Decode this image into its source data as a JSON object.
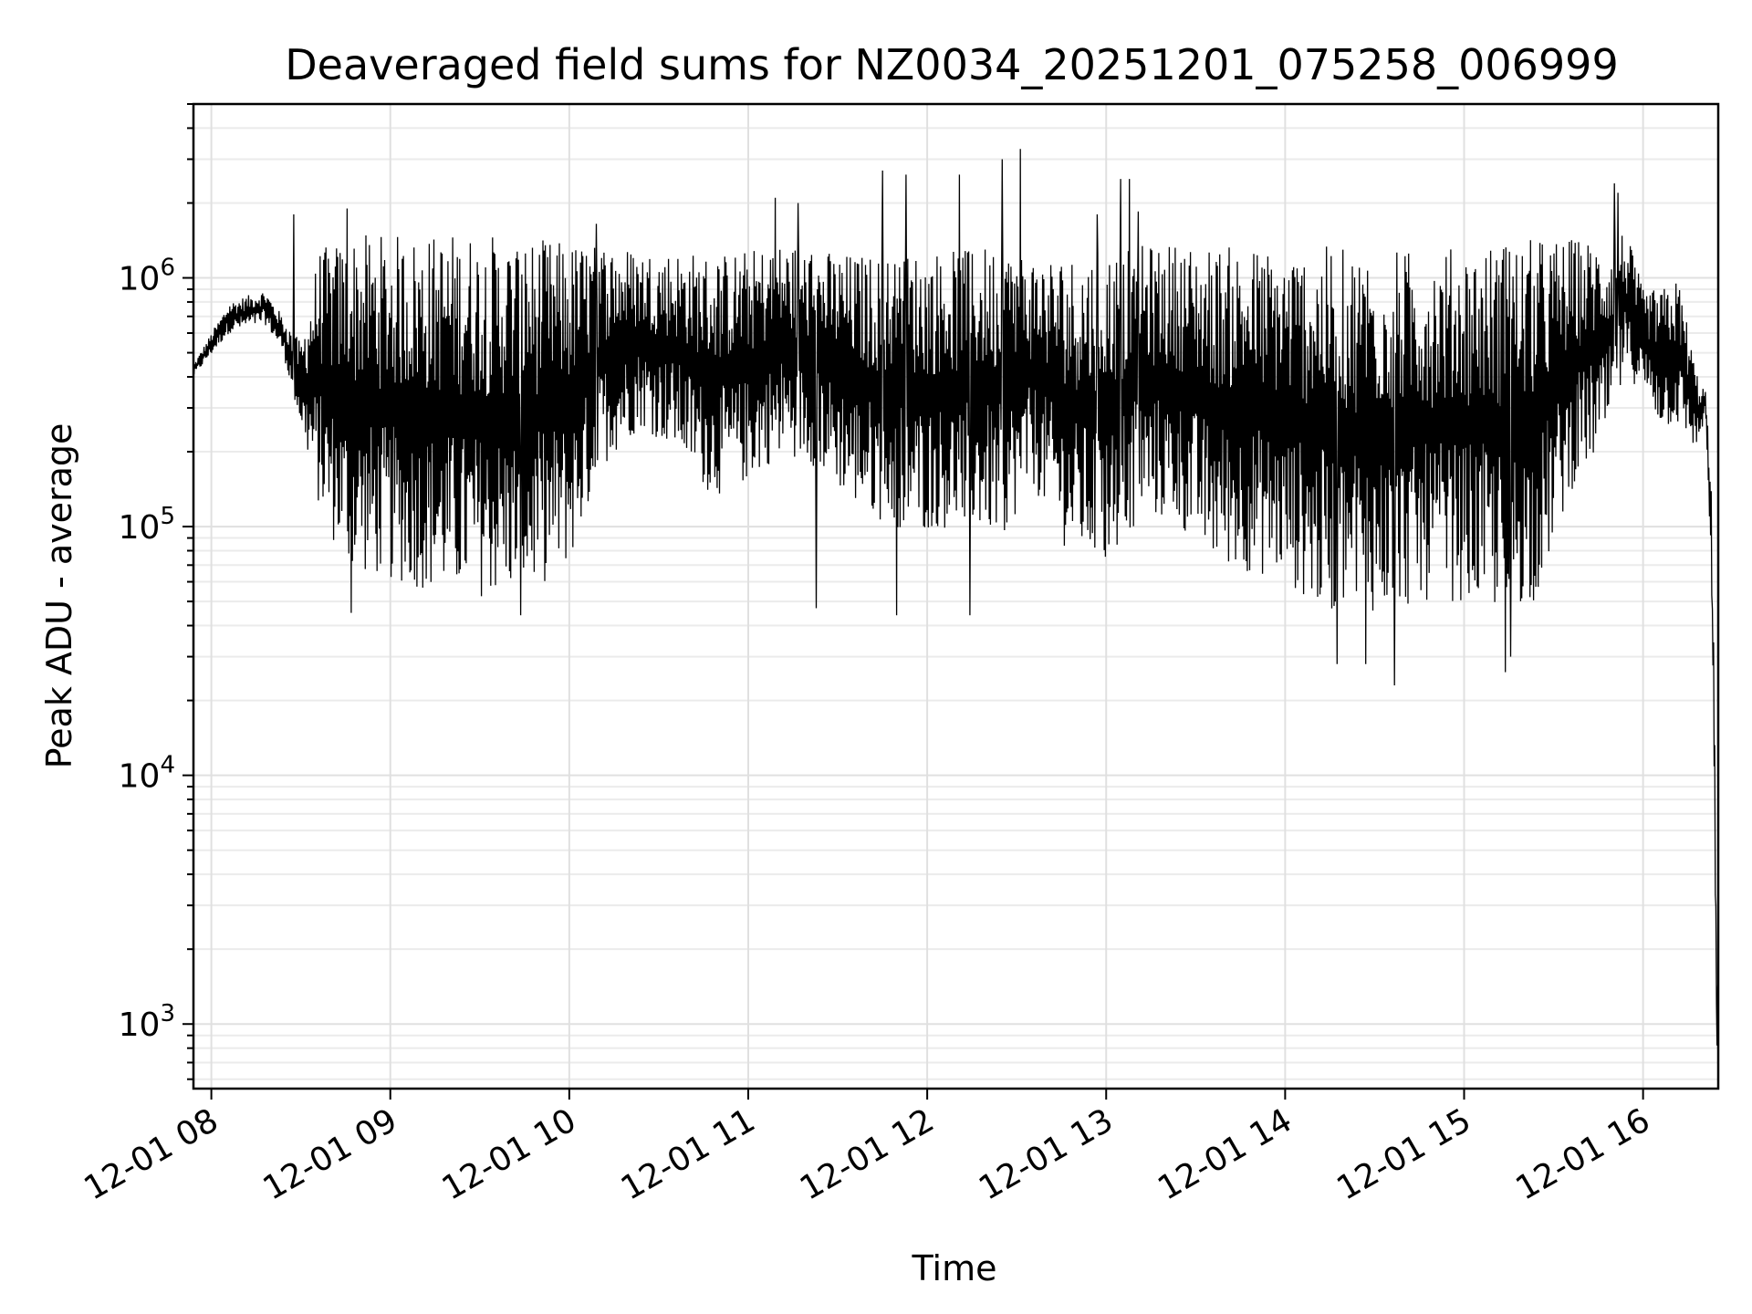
{
  "chart_data": {
    "type": "line",
    "title": "Deaveraged field sums for NZ0034_20251201_075258_006999",
    "xlabel": "Time",
    "ylabel": "Peak ADU - average",
    "yscale": "log",
    "ylim": [
      550,
      5000000
    ],
    "xlim_hours": [
      7.9,
      16.42
    ],
    "grid": true,
    "x_tick_hours": [
      8,
      9,
      10,
      11,
      12,
      13,
      14,
      15,
      16
    ],
    "x_tick_labels": [
      "12-01 08",
      "12-01 09",
      "12-01 10",
      "12-01 11",
      "12-01 12",
      "12-01 13",
      "12-01 14",
      "12-01 15",
      "12-01 16"
    ],
    "y_ticks": [
      {
        "value": 1000,
        "base": "10",
        "exp": "3"
      },
      {
        "value": 10000,
        "base": "10",
        "exp": "4"
      },
      {
        "value": 100000,
        "base": "10",
        "exp": "5"
      },
      {
        "value": 1000000,
        "base": "10",
        "exp": "6"
      }
    ],
    "series": [
      {
        "name": "Peak ADU - average",
        "color": "#000000",
        "envelope_hours": [
          7.9,
          8.1,
          8.3,
          8.4,
          8.5,
          8.6,
          8.7,
          8.8,
          9.0,
          9.2,
          9.4,
          9.6,
          9.8,
          10.0,
          10.2,
          10.4,
          10.6,
          10.8,
          11.0,
          11.2,
          11.4,
          11.6,
          11.8,
          12.0,
          12.2,
          12.4,
          12.6,
          12.8,
          13.0,
          13.2,
          13.4,
          13.6,
          13.8,
          14.0,
          14.2,
          14.4,
          14.6,
          14.8,
          15.0,
          15.2,
          15.4,
          15.6,
          15.8,
          15.9,
          16.0,
          16.1,
          16.2,
          16.3,
          16.35,
          16.38,
          16.4,
          16.41,
          16.42
        ],
        "envelope_high": [
          450000,
          800000,
          900000,
          700000,
          550000,
          1300000,
          1400000,
          1500000,
          1500000,
          1500000,
          1550000,
          1500000,
          1450000,
          1400000,
          1400000,
          1300000,
          1300000,
          1250000,
          1300000,
          1400000,
          1300000,
          1250000,
          1250000,
          1300000,
          1300000,
          1400000,
          1250000,
          1250000,
          1300000,
          1350000,
          1400000,
          1350000,
          1350000,
          1300000,
          1350000,
          1300000,
          1300000,
          1300000,
          1350000,
          1400000,
          1450000,
          1450000,
          1400000,
          1600000,
          900000,
          900000,
          1000000,
          420000,
          350000,
          150000,
          20000,
          2000,
          1500
        ],
        "envelope_low": [
          400000,
          600000,
          650000,
          500000,
          250000,
          120000,
          80000,
          65000,
          60000,
          55000,
          52000,
          52000,
          55000,
          70000,
          180000,
          250000,
          200000,
          130000,
          150000,
          200000,
          170000,
          120000,
          100000,
          95000,
          100000,
          90000,
          140000,
          75000,
          70000,
          110000,
          100000,
          70000,
          65000,
          60000,
          45000,
          45000,
          45000,
          50000,
          50000,
          45000,
          50000,
          140000,
          220000,
          400000,
          350000,
          250000,
          250000,
          200000,
          280000,
          60000,
          6000,
          900,
          1500
        ],
        "spikes": [
          {
            "t": 8.46,
            "v": 1800000
          },
          {
            "t": 8.76,
            "v": 1900000
          },
          {
            "t": 10.15,
            "v": 1650000
          },
          {
            "t": 11.15,
            "v": 2100000
          },
          {
            "t": 11.28,
            "v": 2000000
          },
          {
            "t": 11.75,
            "v": 2700000
          },
          {
            "t": 11.88,
            "v": 2600000
          },
          {
            "t": 12.18,
            "v": 2600000
          },
          {
            "t": 12.42,
            "v": 3000000
          },
          {
            "t": 12.52,
            "v": 3300000
          },
          {
            "t": 12.95,
            "v": 1800000
          },
          {
            "t": 13.08,
            "v": 2500000
          },
          {
            "t": 13.13,
            "v": 2500000
          },
          {
            "t": 13.18,
            "v": 1850000
          },
          {
            "t": 15.84,
            "v": 2400000
          },
          {
            "t": 15.86,
            "v": 2200000
          }
        ],
        "dips": [
          {
            "t": 8.78,
            "v": 45000
          },
          {
            "t": 9.73,
            "v": 44000
          },
          {
            "t": 11.38,
            "v": 47000
          },
          {
            "t": 11.83,
            "v": 44000
          },
          {
            "t": 12.24,
            "v": 44000
          },
          {
            "t": 14.29,
            "v": 28000
          },
          {
            "t": 14.45,
            "v": 28000
          },
          {
            "t": 14.61,
            "v": 23000
          },
          {
            "t": 15.23,
            "v": 26000
          },
          {
            "t": 15.26,
            "v": 30000
          },
          {
            "t": 16.415,
            "v": 820
          }
        ]
      }
    ]
  }
}
